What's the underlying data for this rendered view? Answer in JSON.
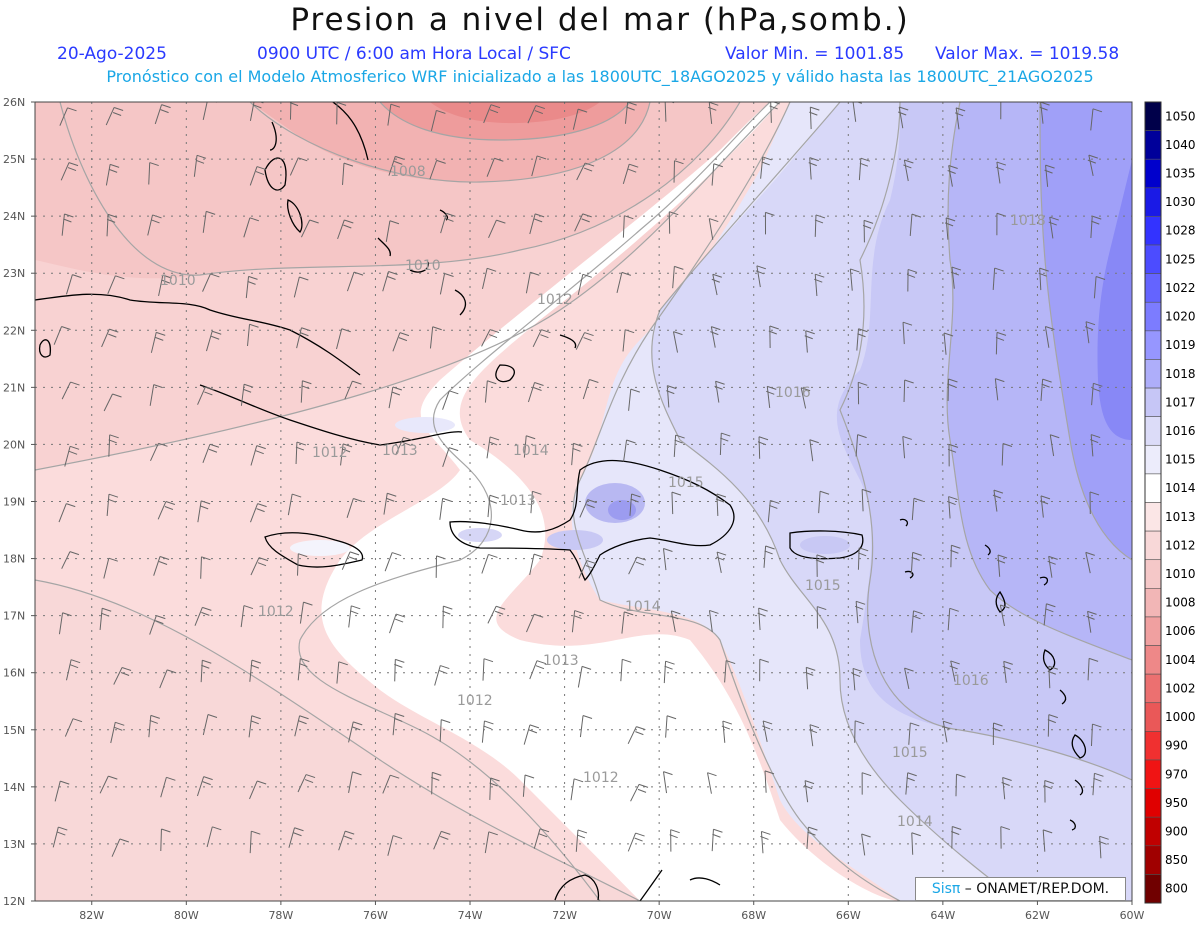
{
  "header": {
    "title": "Presion a nivel del mar (hPa,somb.)",
    "date": "20-Ago-2025",
    "time": "0900 UTC / 6:00 am Hora Local / SFC",
    "min_value": "Valor Min. = 1001.85",
    "max_value": "Valor Max. = 1019.58",
    "model_info": "Pronóstico con el Modelo Atmosferico WRF inicializado a las 1800UTC_18AGO2025 y válido hasta las  1800UTC_21AGO2025"
  },
  "map": {
    "lon_labels": [
      "82W",
      "80W",
      "78W",
      "76W",
      "74W",
      "72W",
      "70W",
      "68W",
      "66W",
      "64W",
      "62W",
      "60W"
    ],
    "lat_labels": [
      "26N",
      "25N",
      "24N",
      "23N",
      "22N",
      "21N",
      "20N",
      "19N",
      "18N",
      "17N",
      "16N",
      "15N",
      "14N",
      "13N",
      "12N"
    ],
    "contour_labels": [
      {
        "text": "1008"
      },
      {
        "text": "1010"
      },
      {
        "text": "1010"
      },
      {
        "text": "1012"
      },
      {
        "text": "1018"
      },
      {
        "text": "1016"
      },
      {
        "text": "1012"
      },
      {
        "text": "1013"
      },
      {
        "text": "1014"
      },
      {
        "text": "1013"
      },
      {
        "text": "1015"
      },
      {
        "text": "1015"
      },
      {
        "text": "1012"
      },
      {
        "text": "1014"
      },
      {
        "text": "1013"
      },
      {
        "text": "1012"
      },
      {
        "text": "1016"
      },
      {
        "text": "1015"
      },
      {
        "text": "1012"
      },
      {
        "text": "1014"
      }
    ]
  },
  "colorbar": {
    "levels": [
      "1050",
      "1040",
      "1035",
      "1030",
      "1028",
      "1025",
      "1022",
      "1020",
      "1019",
      "1018",
      "1017",
      "1016",
      "1015",
      "1014",
      "1013",
      "1012",
      "1010",
      "1008",
      "1006",
      "1004",
      "1002",
      "1000",
      "990",
      "970",
      "950",
      "900",
      "850",
      "800"
    ],
    "colors": [
      "#00004a",
      "#00009a",
      "#0000cc",
      "#1a1ae6",
      "#3333ff",
      "#4c4cff",
      "#6464ff",
      "#7c7cff",
      "#9696ff",
      "#aeaefa",
      "#c6c6f6",
      "#dcdcf8",
      "#ececfb",
      "#ffffff",
      "#fbe6e6",
      "#f8d8d8",
      "#f5c8c8",
      "#f2b6b6",
      "#f0a0a0",
      "#ee8888",
      "#ec7070",
      "#ea5858",
      "#f03030",
      "#f01414",
      "#e00000",
      "#c00000",
      "#a00000",
      "#700000"
    ]
  },
  "credit": {
    "sis": "Sisπ",
    "text": " – ONAMET/REP.DOM."
  }
}
